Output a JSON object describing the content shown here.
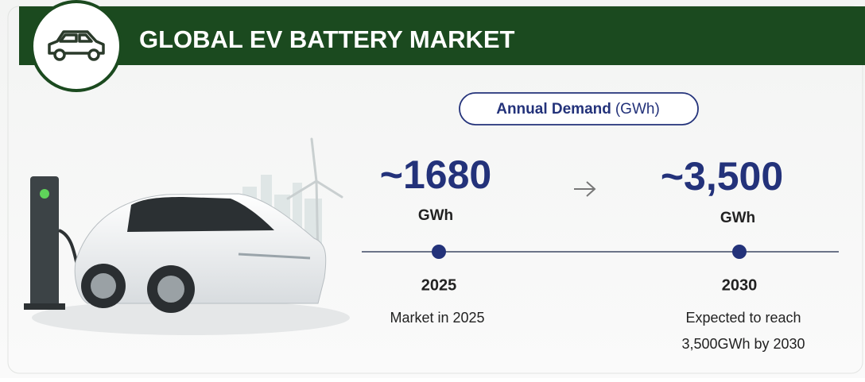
{
  "header": {
    "title": "GLOBAL EV BATTERY MARKET"
  },
  "badge": {
    "label": "Annual Demand",
    "unit": "(GWh)"
  },
  "points": [
    {
      "value": "~1680",
      "unit": "GWh",
      "year": "2025",
      "caption": [
        "Market in 2025"
      ]
    },
    {
      "value": "~3,500",
      "unit": "GWh",
      "year": "2030",
      "caption": [
        "Expected to reach",
        "3,500GWh by 2030"
      ]
    }
  ]
}
